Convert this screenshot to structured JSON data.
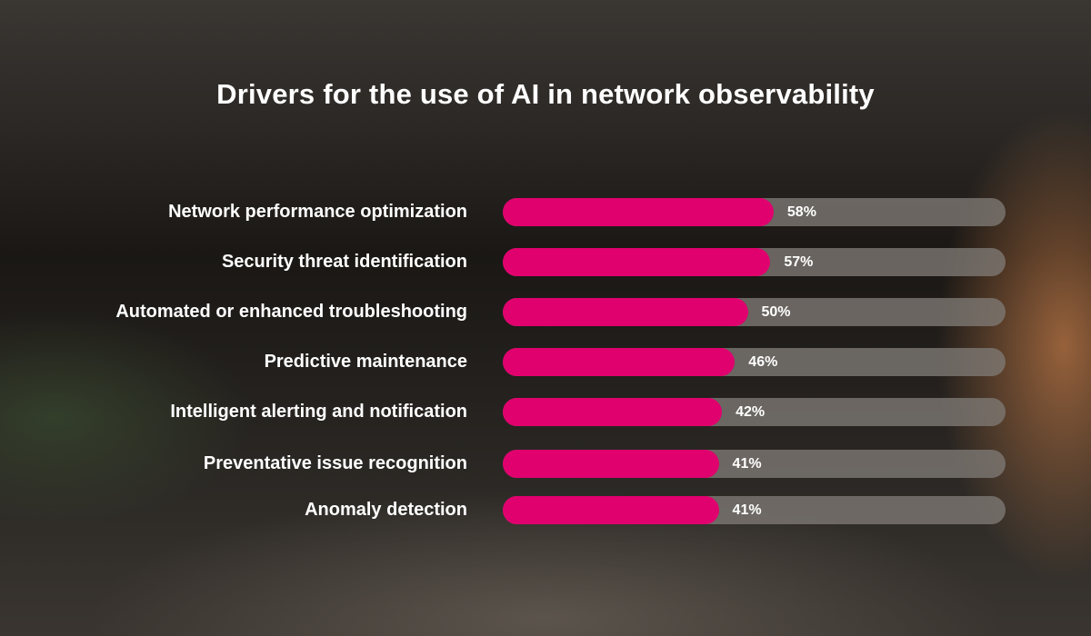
{
  "chart_data": {
    "type": "bar",
    "orientation": "horizontal",
    "title": "Drivers for the use of AI in network observability",
    "categories": [
      "Network performance optimization",
      "Security threat identification",
      "Automated or enhanced troubleshooting",
      "Predictive maintenance",
      "Intelligent alerting and notification",
      "Preventative issue recognition",
      "Anomaly detection"
    ],
    "values": [
      58,
      57,
      50,
      46,
      42,
      41,
      41
    ],
    "value_labels": [
      "58%",
      "57%",
      "50%",
      "46%",
      "42%",
      "41%",
      "41%"
    ],
    "unit": "%",
    "bar_color": "#e0006e",
    "track_color": "#7d7873",
    "grid": false
  }
}
